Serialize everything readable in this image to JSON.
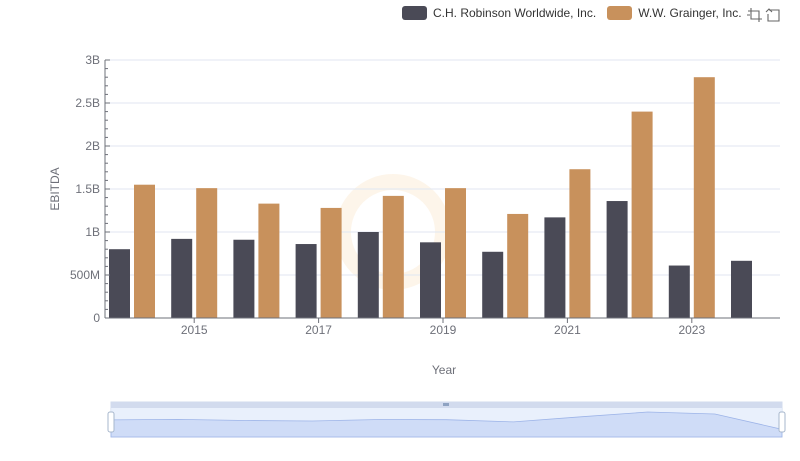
{
  "legend": {
    "items": [
      {
        "name": "C.H. Robinson Worldwide, Inc.",
        "color": "#4a4a56"
      },
      {
        "name": "W.W. Grainger, Inc.",
        "color": "#c8915c"
      }
    ]
  },
  "toolbar": {
    "icons": [
      "zoom-icon",
      "restore-icon"
    ]
  },
  "chart_data": {
    "type": "bar",
    "categories": [
      "2014",
      "2015",
      "2016",
      "2017",
      "2018",
      "2019",
      "2020",
      "2021",
      "2022",
      "2023",
      "2024"
    ],
    "series": [
      {
        "name": "C.H. Robinson Worldwide, Inc.",
        "color": "#4a4a56",
        "values": [
          800000000,
          920000000,
          910000000,
          860000000,
          1000000000,
          880000000,
          770000000,
          1170000000,
          1360000000,
          610000000,
          665000000
        ]
      },
      {
        "name": "W.W. Grainger, Inc.",
        "color": "#c8915c",
        "values": [
          1550000000,
          1510000000,
          1330000000,
          1280000000,
          1420000000,
          1510000000,
          1210000000,
          1730000000,
          2400000000,
          2800000000,
          null
        ]
      }
    ],
    "xlabel": "Year",
    "ylabel": "EBITDA",
    "ylim": [
      0,
      3000000000
    ],
    "yticks": [
      {
        "value": 0,
        "label": "0"
      },
      {
        "value": 500000000,
        "label": "500M"
      },
      {
        "value": 1000000000,
        "label": "1B"
      },
      {
        "value": 1500000000,
        "label": "1.5B"
      },
      {
        "value": 2000000000,
        "label": "2B"
      },
      {
        "value": 2500000000,
        "label": "2.5B"
      },
      {
        "value": 3000000000,
        "label": "3B"
      }
    ],
    "xtick_labels": [
      "2015",
      "2017",
      "2019",
      "2021",
      "2023"
    ],
    "grid": true,
    "legend_position": "top-right",
    "slider": {
      "type": "data-zoom",
      "range_percent": [
        0,
        100
      ]
    }
  }
}
